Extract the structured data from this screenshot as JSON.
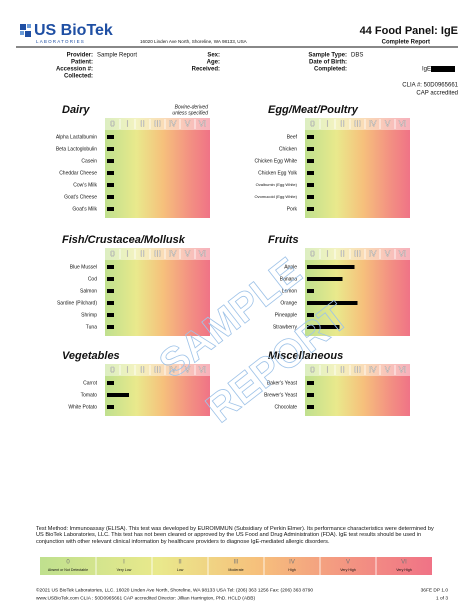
{
  "header": {
    "logo": "US BioTek",
    "logo_sub": "LABORATORIES",
    "address": "16020 Linden Ave North, Shoreline, WA 98133, USA",
    "title": "44 Food Panel: IgE",
    "subtitle": "Complete Report"
  },
  "patient_info": {
    "col1": [
      {
        "label": "Provider:",
        "value": "Sample Report"
      },
      {
        "label": "Patient:"
      },
      {
        "label": "Accession #:"
      },
      {
        "label": "Collected:"
      }
    ],
    "col2": [
      {
        "label": "Sex:"
      },
      {
        "label": "Age:"
      },
      {
        "label": "Received:"
      }
    ],
    "col3": [
      {
        "label": "Sample Type:",
        "value": "DBS"
      },
      {
        "label": "Date of Birth:"
      },
      {
        "label": "Completed:"
      }
    ],
    "badge": "IgE",
    "clia": "CLIA #: 50D0965661",
    "cap": "CAP accredited"
  },
  "classes": [
    "0",
    "I",
    "II",
    "III",
    "IV",
    "V",
    "VI"
  ],
  "panels": [
    {
      "title": "Dairy",
      "note": [
        "Bovine-derived",
        "unless specified"
      ],
      "items": [
        {
          "label": "Alpha Lactalbumin",
          "value": 0.6
        },
        {
          "label": "Beta Lactoglobulin",
          "value": 0.6
        },
        {
          "label": "Casein",
          "value": 0.6
        },
        {
          "label": "Cheddar Cheese",
          "value": 0.6
        },
        {
          "label": "Cow's Milk",
          "value": 0.6
        },
        {
          "label": "Goat's Cheese",
          "value": 0.6
        },
        {
          "label": "Goat's Milk",
          "value": 0.6
        }
      ]
    },
    {
      "title": "Egg/Meat/Poultry",
      "items": [
        {
          "label": "Beef",
          "value": 0.6
        },
        {
          "label": "Chicken",
          "value": 0.6
        },
        {
          "label": "Chicken Egg White",
          "value": 0.6
        },
        {
          "label": "Chicken Egg Yolk",
          "value": 0.6
        },
        {
          "label": "Ovalbumin (Egg White)",
          "value": 0.6
        },
        {
          "label": "Ovomucoid (Egg White)",
          "value": 0.6
        },
        {
          "label": "Pork",
          "value": 0.6
        }
      ]
    },
    {
      "title": "Fish/Crustacea/Mollusk",
      "items": [
        {
          "label": "Blue Mussel",
          "value": 0.6
        },
        {
          "label": "Cod",
          "value": 0.6
        },
        {
          "label": "Salmon",
          "value": 0.6
        },
        {
          "label": "Sardine (Pilchard)",
          "value": 0.6
        },
        {
          "label": "Shrimp",
          "value": 0.6
        },
        {
          "label": "Tuna",
          "value": 0.6
        }
      ]
    },
    {
      "title": "Fruits",
      "items": [
        {
          "label": "Apple",
          "value": 3.3
        },
        {
          "label": "Banana",
          "value": 2.5
        },
        {
          "label": "Lemon",
          "value": 0.6
        },
        {
          "label": "Orange",
          "value": 3.5
        },
        {
          "label": "Pineapple",
          "value": 0.6
        },
        {
          "label": "Strawberry",
          "value": 2.3
        }
      ]
    },
    {
      "title": "Vegetables",
      "items": [
        {
          "label": "Carrot",
          "value": 0.6
        },
        {
          "label": "Tomato",
          "value": 1.6
        },
        {
          "label": "White Potato",
          "value": 0.6
        }
      ]
    },
    {
      "title": "Miscellaneous",
      "items": [
        {
          "label": "Baker's Yeast",
          "value": 0.6
        },
        {
          "label": "Brewer's Yeast",
          "value": 0.6
        },
        {
          "label": "Chocolate",
          "value": 0.6
        }
      ]
    }
  ],
  "watermark": [
    "SAMPLE",
    "REPORT"
  ],
  "footnote": "Test Method: Immunoassay (ELISA). This test was developed by EUROIMMUN (Subsidiary of Perkin Elmer). Its performance characteristics were determined by US BioTek Laboratories, LLC. This test has not been cleared or approved by the US Food and Drug Administration (FDA). IgE test results should be used in conjunction with other relevant clinical information by healthcare providers to diagnose IgE-mediated allergic disorders.",
  "scale_labels": [
    "Absent or Not Detectable",
    "Very Low",
    "Low",
    "Moderate",
    "High",
    "Very High",
    "Very High"
  ],
  "footer": {
    "line1": "©2021 US BioTek Laboratories, LLC. 16020 Linden Ave North, Shoreline, WA 98133 USA Tel: (206) 363 1256 Fax: (206) 363 8790",
    "code": "36FE DP 1.0",
    "line2": "www.USBioTek.com CLIA : 50D0965661 CAP accredited Director: Jillian Harrington, PhD. HCLD (ABB)",
    "page": "1 of 3"
  }
}
